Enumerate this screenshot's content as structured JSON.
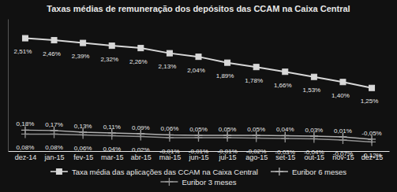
{
  "chart_data": {
    "type": "line",
    "title": "Taxas médias de remuneração dos depósitos das CCAM na Caixa Central",
    "categories": [
      "dez-14",
      "jan-15",
      "fev-15",
      "mar-15",
      "abr-15",
      "mai-15",
      "jun-15",
      "jul-15",
      "ago-15",
      "set-15",
      "out-15",
      "nov-15",
      "dez-15"
    ],
    "series": [
      {
        "name": "Taxa média das aplicações das CCAM na Caixa Central",
        "color": "#d8d8d8",
        "marker": "square",
        "values": [
          2.51,
          2.46,
          2.39,
          2.32,
          2.26,
          2.13,
          2.04,
          1.89,
          1.78,
          1.66,
          1.53,
          1.4,
          1.25
        ],
        "value_labels": [
          "2,51%",
          "2,46%",
          "2,39%",
          "2,32%",
          "2,26%",
          "2,13%",
          "2,04%",
          "1,89%",
          "1,78%",
          "1,66%",
          "1,53%",
          "1,40%",
          "1,25%"
        ]
      },
      {
        "name": "Euribor 6 meses",
        "color": "#b0b0b0",
        "marker": "plus",
        "values": [
          0.18,
          0.17,
          0.13,
          0.11,
          0.09,
          0.06,
          0.05,
          0.05,
          0.05,
          0.04,
          0.03,
          0.01,
          -0.05
        ],
        "value_labels": [
          "0,18%",
          "0,17%",
          "0,13%",
          "0,11%",
          "0,09%",
          "0,06%",
          "0,05%",
          "0,05%",
          "0,05%",
          "0,04%",
          "0,03%",
          "0,01%",
          "-0,05%"
        ]
      },
      {
        "name": "Euribor 3 meses",
        "color": "#909090",
        "marker": "plus",
        "values": [
          0.08,
          0.08,
          0.06,
          0.04,
          0.02,
          -0.01,
          -0.01,
          -0.01,
          -0.02,
          -0.03,
          -0.04,
          -0.07,
          -0.12
        ],
        "value_labels": [
          "0,08%",
          "0,08%",
          "0,06%",
          "0,04%",
          "0,02%",
          "-0,01%",
          "-0,01%",
          "-0,01%",
          "-0,02%",
          "-0,03%",
          "-0,04%",
          "-0,07%",
          "-0,12%"
        ]
      }
    ],
    "ylim": [
      -0.35,
      3.0
    ],
    "data_labels": true,
    "tick_labels": "x",
    "legend": "bottom",
    "grid": false
  }
}
